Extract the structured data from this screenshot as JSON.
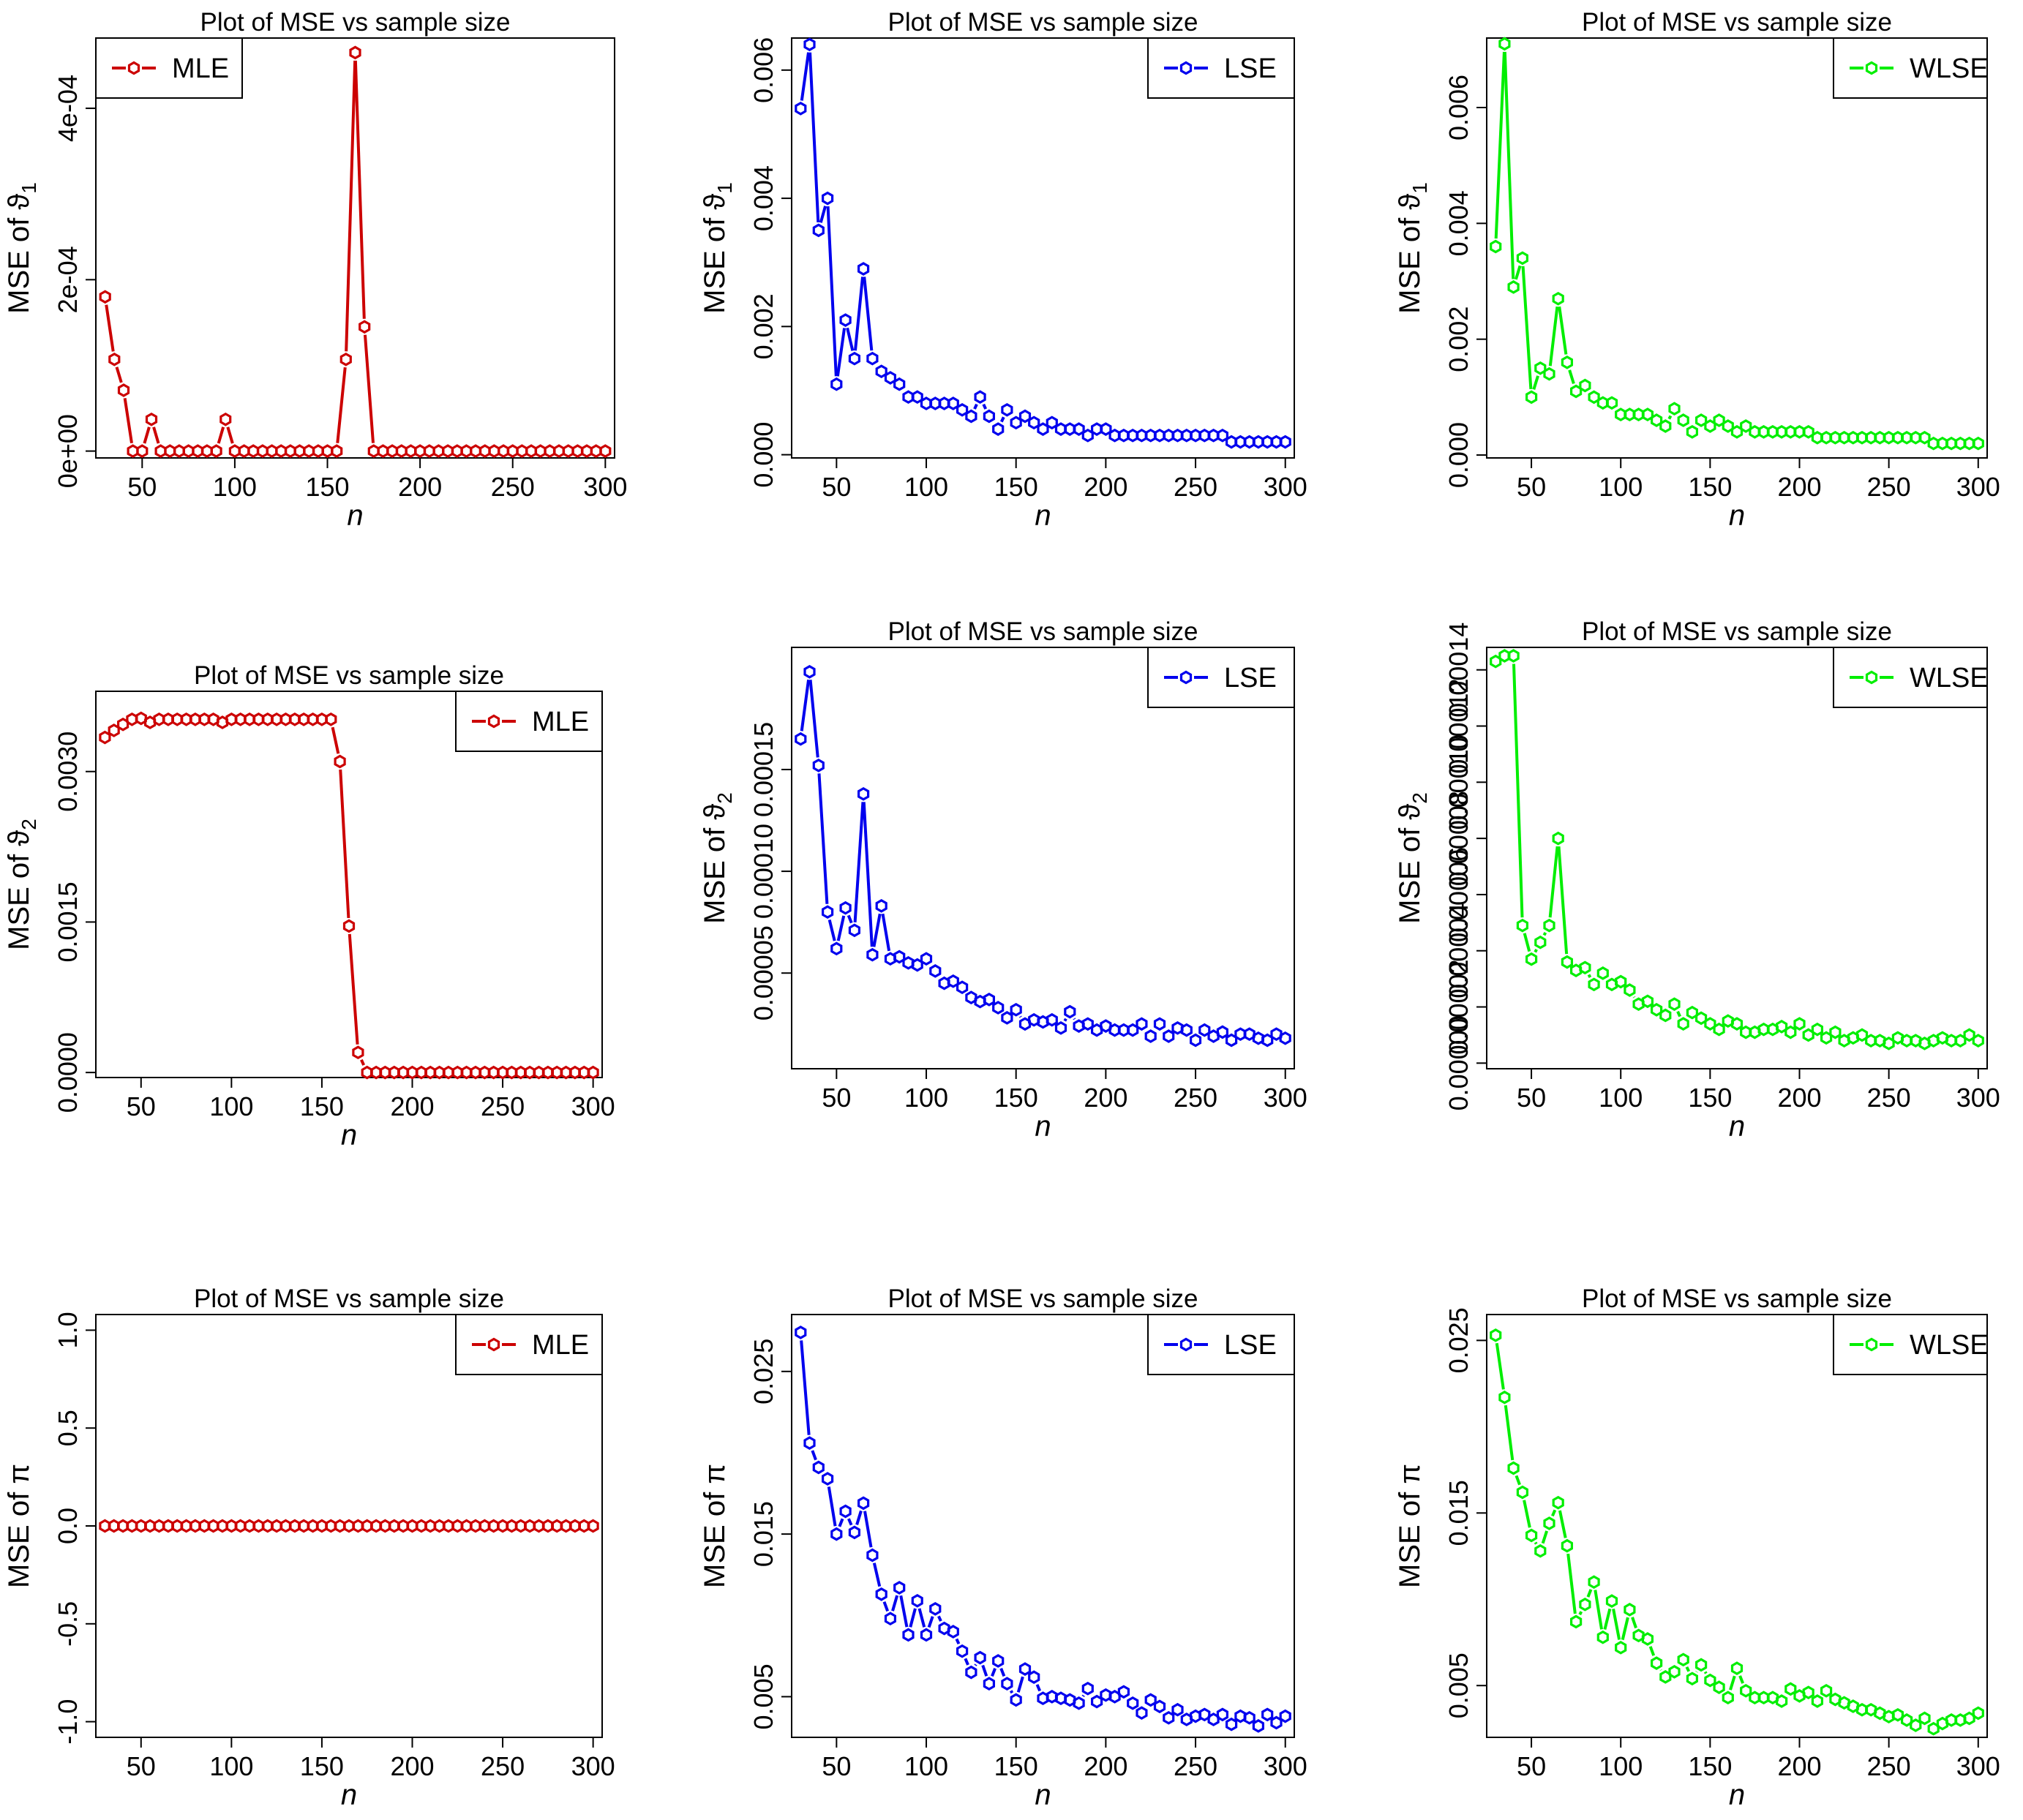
{
  "figure": {
    "rows": [
      "theta1",
      "theta2",
      "pi"
    ],
    "estimators": [
      "MLE",
      "LSE",
      "WLSE"
    ]
  },
  "colors": {
    "MLE": "#cc0000",
    "LSE": "#0000ee",
    "WLSE": "#00ee00"
  },
  "chart_data": [
    {
      "id": "p11",
      "type": "line",
      "title": "Plot of MSE vs sample size",
      "xlabel": "n",
      "ylabel_prefix": "MSE of ",
      "ylabel_symbol": "ϑ",
      "ylabel_sub": "1",
      "xlim": [
        25,
        305
      ],
      "ylim": [
        -8e-06,
        0.000482
      ],
      "xticks": [
        50,
        100,
        150,
        200,
        250,
        300
      ],
      "yticks": [
        {
          "v": 0,
          "label": "0e+00"
        },
        {
          "v": 0.0002,
          "label": "2e-04"
        },
        {
          "v": 0.0004,
          "label": "4e-04"
        }
      ],
      "legend": {
        "label": "MLE",
        "position": "top-left"
      },
      "color": "MLE",
      "series": {
        "name": "MLE",
        "x_start": 30,
        "x_step": 5,
        "values": [
          0.00018,
          0.000107,
          7.1e-05,
          0.0,
          0.0,
          3.7e-05,
          0.0,
          0.0,
          0.0,
          0.0,
          0.0,
          0.0,
          0.0,
          3.7e-05,
          0.0,
          0.0,
          0.0,
          0.0,
          0.0,
          0.0,
          0.0,
          0.0,
          0.0,
          0.0,
          0.0,
          0.0,
          0.000107,
          0.000465,
          0.000145,
          0.0,
          0.0,
          0.0,
          0.0,
          0.0,
          0.0,
          0.0,
          0.0,
          0.0,
          0.0,
          0.0,
          0.0,
          0.0,
          0.0,
          0.0,
          0.0,
          0.0,
          0.0,
          0.0,
          0.0,
          0.0,
          0.0,
          0.0,
          0.0,
          0.0,
          0.0
        ]
      }
    },
    {
      "id": "p12",
      "type": "line",
      "title": "Plot of MSE vs sample size",
      "xlabel": "n",
      "ylabel_prefix": "MSE of ",
      "ylabel_symbol": "ϑ",
      "ylabel_sub": "1",
      "xlim": [
        25,
        305
      ],
      "ylim": [
        -5e-05,
        0.0065
      ],
      "xticks": [
        50,
        100,
        150,
        200,
        250,
        300
      ],
      "yticks": [
        {
          "v": 0,
          "label": "0.000"
        },
        {
          "v": 0.002,
          "label": "0.002"
        },
        {
          "v": 0.004,
          "label": "0.004"
        },
        {
          "v": 0.006,
          "label": "0.006"
        }
      ],
      "legend": {
        "label": "LSE",
        "position": "top-right"
      },
      "color": "LSE",
      "series": {
        "name": "LSE",
        "x_start": 30,
        "x_step": 5,
        "values": [
          0.0054,
          0.0064,
          0.0035,
          0.004,
          0.0011,
          0.0021,
          0.0015,
          0.0029,
          0.0015,
          0.0013,
          0.0012,
          0.0011,
          0.0009,
          0.0009,
          0.0008,
          0.0008,
          0.0008,
          0.0008,
          0.0007,
          0.0006,
          0.0009,
          0.0006,
          0.0004,
          0.0007,
          0.0005,
          0.0006,
          0.0005,
          0.0004,
          0.0005,
          0.0004,
          0.0004,
          0.0004,
          0.0003,
          0.0004,
          0.0004,
          0.0003,
          0.0003,
          0.0003,
          0.0003,
          0.0003,
          0.0003,
          0.0003,
          0.0003,
          0.0003,
          0.0003,
          0.0003,
          0.0003,
          0.0003,
          0.0002,
          0.0002,
          0.0002,
          0.0002,
          0.0002,
          0.0002,
          0.0002
        ]
      }
    },
    {
      "id": "p13",
      "type": "line",
      "title": "Plot of MSE vs sample size",
      "xlabel": "n",
      "ylabel_prefix": "MSE of ",
      "ylabel_symbol": "ϑ",
      "ylabel_sub": "1",
      "xlim": [
        25,
        305
      ],
      "ylim": [
        -5e-05,
        0.0072
      ],
      "xticks": [
        50,
        100,
        150,
        200,
        250,
        300
      ],
      "yticks": [
        {
          "v": 0,
          "label": "0.000"
        },
        {
          "v": 0.002,
          "label": "0.002"
        },
        {
          "v": 0.004,
          "label": "0.004"
        },
        {
          "v": 0.006,
          "label": "0.006"
        }
      ],
      "legend": {
        "label": "WLSE",
        "position": "top-right"
      },
      "color": "WLSE",
      "series": {
        "name": "WLSE",
        "x_start": 30,
        "x_step": 5,
        "values": [
          0.0036,
          0.0071,
          0.0029,
          0.0034,
          0.001,
          0.0015,
          0.0014,
          0.0027,
          0.0016,
          0.0011,
          0.0012,
          0.001,
          0.0009,
          0.0009,
          0.0007,
          0.0007,
          0.0007,
          0.0007,
          0.0006,
          0.0005,
          0.0008,
          0.0006,
          0.0004,
          0.0006,
          0.0005,
          0.0006,
          0.0005,
          0.0004,
          0.0005,
          0.0004,
          0.0004,
          0.0004,
          0.0004,
          0.0004,
          0.0004,
          0.0004,
          0.0003,
          0.0003,
          0.0003,
          0.0003,
          0.0003,
          0.0003,
          0.0003,
          0.0003,
          0.0003,
          0.0003,
          0.0003,
          0.0003,
          0.0003,
          0.0002,
          0.0002,
          0.0002,
          0.0002,
          0.0002,
          0.0002
        ]
      }
    },
    {
      "id": "p21",
      "type": "line",
      "title": "Plot of MSE vs sample size",
      "xlabel": "n",
      "ylabel_prefix": "MSE of ",
      "ylabel_symbol": "ϑ",
      "ylabel_sub": "2",
      "xlim": [
        25,
        305
      ],
      "ylim": [
        -5e-05,
        0.0038
      ],
      "xticks": [
        50,
        100,
        150,
        200,
        250,
        300
      ],
      "yticks": [
        {
          "v": 0,
          "label": "0.0000"
        },
        {
          "v": 0.0015,
          "label": "0.0015"
        },
        {
          "v": 0.003,
          "label": "0.0030"
        }
      ],
      "legend": {
        "label": "MLE",
        "position": "top-right"
      },
      "color": "MLE",
      "series": {
        "name": "MLE",
        "x_start": 30,
        "x_step": 5,
        "values": [
          0.00334,
          0.00341,
          0.00347,
          0.00352,
          0.00353,
          0.00349,
          0.00352,
          0.00352,
          0.00352,
          0.00352,
          0.00352,
          0.00352,
          0.00352,
          0.00349,
          0.00352,
          0.00352,
          0.00352,
          0.00352,
          0.00352,
          0.00352,
          0.00352,
          0.00352,
          0.00352,
          0.00352,
          0.00352,
          0.00352,
          0.0031,
          0.00146,
          0.0002,
          0.0,
          0.0,
          0.0,
          0.0,
          0.0,
          0.0,
          0.0,
          0.0,
          0.0,
          0.0,
          0.0,
          0.0,
          0.0,
          0.0,
          0.0,
          0.0,
          0.0,
          0.0,
          0.0,
          0.0,
          0.0,
          0.0,
          0.0,
          0.0,
          0.0,
          0.0
        ]
      }
    },
    {
      "id": "p22",
      "type": "line",
      "title": "Plot of MSE vs sample size",
      "xlabel": "n",
      "ylabel_prefix": "MSE of ",
      "ylabel_symbol": "ϑ",
      "ylabel_sub": "2",
      "xlim": [
        25,
        305
      ],
      "ylim": [
        3e-06,
        0.00021
      ],
      "xticks": [
        50,
        100,
        150,
        200,
        250,
        300
      ],
      "yticks": [
        {
          "v": 5e-05,
          "label": "0.00005"
        },
        {
          "v": 0.0001,
          "label": "0.00010"
        },
        {
          "v": 0.00015,
          "label": "0.00015"
        }
      ],
      "legend": {
        "label": "LSE",
        "position": "top-right"
      },
      "color": "LSE",
      "series": {
        "name": "LSE",
        "x_start": 30,
        "x_step": 5,
        "values": [
          0.000165,
          0.000198,
          0.000152,
          8e-05,
          6.2e-05,
          8.2e-05,
          7.1e-05,
          0.000138,
          5.9e-05,
          8.3e-05,
          5.7e-05,
          5.8e-05,
          5.5e-05,
          5.4e-05,
          5.7e-05,
          5.1e-05,
          4.5e-05,
          4.6e-05,
          4.3e-05,
          3.8e-05,
          3.6e-05,
          3.7e-05,
          3.3e-05,
          2.8e-05,
          3.2e-05,
          2.5e-05,
          2.7e-05,
          2.6e-05,
          2.7e-05,
          2.3e-05,
          3.1e-05,
          2.4e-05,
          2.5e-05,
          2.2e-05,
          2.4e-05,
          2.2e-05,
          2.2e-05,
          2.2e-05,
          2.5e-05,
          1.9e-05,
          2.5e-05,
          1.9e-05,
          2.3e-05,
          2.2e-05,
          1.7e-05,
          2.2e-05,
          1.9e-05,
          2.1e-05,
          1.7e-05,
          2e-05,
          2e-05,
          1.8e-05,
          1.7e-05,
          2e-05,
          1.8e-05
        ]
      }
    },
    {
      "id": "p23",
      "type": "line",
      "title": "Plot of MSE vs sample size",
      "xlabel": "n",
      "ylabel_prefix": "MSE of ",
      "ylabel_symbol": "ϑ",
      "ylabel_sub": "2",
      "xlim": [
        25,
        305
      ],
      "ylim": [
        -2e-06,
        0.000148
      ],
      "xticks": [
        50,
        100,
        150,
        200,
        250,
        300
      ],
      "yticks": [
        {
          "v": 0,
          "label": "0.00000"
        },
        {
          "v": 2e-05,
          "label": "0.00002"
        },
        {
          "v": 4e-05,
          "label": "0.00004"
        },
        {
          "v": 6e-05,
          "label": "0.00006"
        },
        {
          "v": 8e-05,
          "label": "0.00008"
        },
        {
          "v": 0.0001,
          "label": "0.00010"
        },
        {
          "v": 0.00012,
          "label": "0.00012"
        },
        {
          "v": 0.00014,
          "label": "0.00014"
        }
      ],
      "legend": {
        "label": "WLSE",
        "position": "top-right"
      },
      "color": "WLSE",
      "series": {
        "name": "WLSE",
        "x_start": 30,
        "x_step": 5,
        "values": [
          0.000143,
          0.000145,
          0.000145,
          4.9e-05,
          3.7e-05,
          4.3e-05,
          4.9e-05,
          8e-05,
          3.6e-05,
          3.3e-05,
          3.4e-05,
          2.8e-05,
          3.2e-05,
          2.8e-05,
          2.9e-05,
          2.6e-05,
          2.1e-05,
          2.2e-05,
          1.9e-05,
          1.7e-05,
          2.1e-05,
          1.4e-05,
          1.8e-05,
          1.6e-05,
          1.4e-05,
          1.2e-05,
          1.5e-05,
          1.4e-05,
          1.1e-05,
          1.1e-05,
          1.2e-05,
          1.2e-05,
          1.3e-05,
          1.1e-05,
          1.4e-05,
          1e-05,
          1.2e-05,
          9e-06,
          1.1e-05,
          8e-06,
          9e-06,
          1e-05,
          8e-06,
          8e-06,
          7e-06,
          9e-06,
          8e-06,
          8e-06,
          7e-06,
          8e-06,
          9e-06,
          8e-06,
          8e-06,
          1e-05,
          8e-06
        ]
      }
    },
    {
      "id": "p31",
      "type": "line",
      "title": "Plot of MSE vs sample size",
      "xlabel": "n",
      "ylabel_prefix": "MSE of ",
      "ylabel_symbol": "π",
      "ylabel_sub": "",
      "xlim": [
        25,
        305
      ],
      "ylim": [
        -1.08,
        1.08
      ],
      "xticks": [
        50,
        100,
        150,
        200,
        250,
        300
      ],
      "yticks": [
        {
          "v": -1.0,
          "label": "-1.0"
        },
        {
          "v": -0.5,
          "label": "-0.5"
        },
        {
          "v": 0.0,
          "label": "0.0"
        },
        {
          "v": 0.5,
          "label": "0.5"
        },
        {
          "v": 1.0,
          "label": "1.0"
        }
      ],
      "legend": {
        "label": "MLE",
        "position": "top-right"
      },
      "color": "MLE",
      "series": {
        "name": "MLE",
        "x_start": 30,
        "x_step": 5,
        "values": [
          0,
          0,
          0,
          0,
          0,
          0,
          0,
          0,
          0,
          0,
          0,
          0,
          0,
          0,
          0,
          0,
          0,
          0,
          0,
          0,
          0,
          0,
          0,
          0,
          0,
          0,
          0,
          0,
          0,
          0,
          0,
          0,
          0,
          0,
          0,
          0,
          0,
          0,
          0,
          0,
          0,
          0,
          0,
          0,
          0,
          0,
          0,
          0,
          0,
          0,
          0,
          0,
          0,
          0,
          0
        ]
      }
    },
    {
      "id": "p32",
      "type": "line",
      "title": "Plot of MSE vs sample size",
      "xlabel": "n",
      "ylabel_prefix": "MSE of ",
      "ylabel_symbol": "π",
      "ylabel_sub": "",
      "xlim": [
        25,
        305
      ],
      "ylim": [
        0.0025,
        0.0285
      ],
      "xticks": [
        50,
        100,
        150,
        200,
        250,
        300
      ],
      "yticks": [
        {
          "v": 0.005,
          "label": "0.005"
        },
        {
          "v": 0.015,
          "label": "0.015"
        },
        {
          "v": 0.025,
          "label": "0.025"
        }
      ],
      "legend": {
        "label": "LSE",
        "position": "top-right"
      },
      "color": "LSE",
      "series": {
        "name": "LSE",
        "x_start": 30,
        "x_step": 5,
        "values": [
          0.0274,
          0.0206,
          0.0191,
          0.0184,
          0.015,
          0.0164,
          0.0151,
          0.0169,
          0.0137,
          0.0113,
          0.0098,
          0.0117,
          0.0088,
          0.0109,
          0.0088,
          0.0104,
          0.0092,
          0.009,
          0.0078,
          0.0065,
          0.0074,
          0.0058,
          0.0072,
          0.0058,
          0.0048,
          0.0067,
          0.0062,
          0.0049,
          0.005,
          0.0049,
          0.0048,
          0.0046,
          0.0055,
          0.0047,
          0.0051,
          0.005,
          0.0053,
          0.0046,
          0.004,
          0.0048,
          0.0044,
          0.0037,
          0.0042,
          0.0036,
          0.0038,
          0.0039,
          0.0036,
          0.0039,
          0.0033,
          0.0038,
          0.0037,
          0.0032,
          0.0039,
          0.0034,
          0.0038
        ]
      }
    },
    {
      "id": "p33",
      "type": "line",
      "title": "Plot of MSE vs sample size",
      "xlabel": "n",
      "ylabel_prefix": "MSE of ",
      "ylabel_symbol": "π",
      "ylabel_sub": "",
      "xlim": [
        25,
        305
      ],
      "ylim": [
        0.002,
        0.0265
      ],
      "xticks": [
        50,
        100,
        150,
        200,
        250,
        300
      ],
      "yticks": [
        {
          "v": 0.005,
          "label": "0.005"
        },
        {
          "v": 0.015,
          "label": "0.015"
        },
        {
          "v": 0.025,
          "label": "0.025"
        }
      ],
      "legend": {
        "label": "WLSE",
        "position": "top-right"
      },
      "color": "WLSE",
      "series": {
        "name": "WLSE",
        "x_start": 30,
        "x_step": 5,
        "values": [
          0.0253,
          0.0217,
          0.0176,
          0.0162,
          0.0137,
          0.0128,
          0.0144,
          0.0156,
          0.0131,
          0.0087,
          0.0097,
          0.011,
          0.0078,
          0.0099,
          0.0072,
          0.0094,
          0.0079,
          0.0077,
          0.0063,
          0.0055,
          0.0058,
          0.0065,
          0.0054,
          0.0062,
          0.0053,
          0.0049,
          0.0043,
          0.006,
          0.0047,
          0.0043,
          0.0043,
          0.0043,
          0.0041,
          0.0048,
          0.0044,
          0.0046,
          0.0041,
          0.0047,
          0.0042,
          0.004,
          0.0038,
          0.0036,
          0.0036,
          0.0034,
          0.0032,
          0.0033,
          0.003,
          0.0027,
          0.0031,
          0.0025,
          0.0028,
          0.003,
          0.003,
          0.0031,
          0.0034
        ]
      }
    }
  ]
}
